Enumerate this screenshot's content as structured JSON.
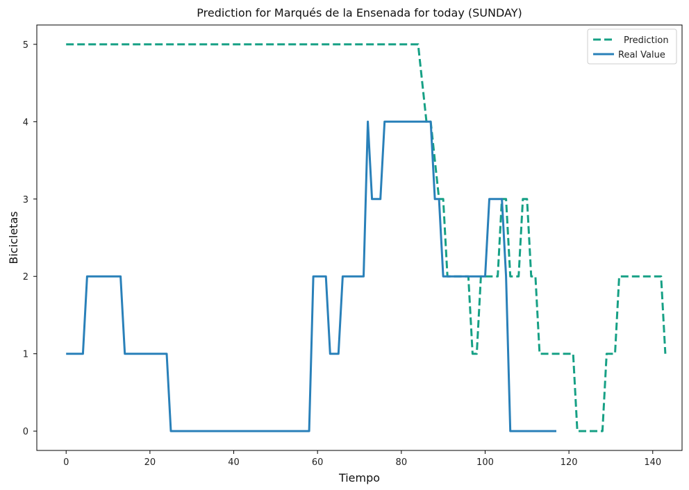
{
  "chart_data": {
    "type": "line",
    "title": "Prediction for Marqués de la Ensenada for today (SUNDAY)",
    "xlabel": "Tiempo",
    "ylabel": "Bicicletas",
    "xlim": [
      -7,
      147
    ],
    "ylim": [
      -0.25,
      5.25
    ],
    "xticks": [
      0,
      20,
      40,
      60,
      80,
      100,
      120,
      140
    ],
    "yticks": [
      0,
      1,
      2,
      3,
      4,
      5
    ],
    "grid": false,
    "legend_position": "top-right",
    "series": [
      {
        "name": "Prediction",
        "style": "dashed",
        "color": "#16a085",
        "x": [
          0,
          84,
          85,
          86,
          87,
          88,
          89,
          90,
          91,
          95,
          96,
          97,
          98,
          99,
          100,
          101,
          102,
          103,
          104,
          105,
          106,
          107,
          108,
          109,
          110,
          111,
          112,
          113,
          120,
          121,
          122,
          127,
          128,
          129,
          130,
          131,
          132,
          138,
          139,
          140,
          141,
          142,
          143
        ],
        "y": [
          5,
          5,
          4.5,
          4,
          4,
          3.5,
          3,
          3,
          2,
          2,
          2,
          1,
          1,
          2,
          2,
          2,
          2,
          2,
          3,
          3,
          2,
          2,
          2,
          3,
          3,
          2,
          2,
          1,
          1,
          1,
          0,
          0,
          0,
          1,
          1,
          1,
          2,
          2,
          2,
          2,
          2,
          2,
          1
        ]
      },
      {
        "name": "Real Value",
        "style": "solid",
        "color": "#2980b9",
        "x": [
          0,
          4,
          5,
          13,
          14,
          24,
          25,
          58,
          59,
          62,
          63,
          65,
          66,
          71,
          72,
          73,
          75,
          76,
          87,
          88,
          89,
          90,
          91,
          99,
          100,
          101,
          104,
          105,
          106,
          107,
          117
        ],
        "y": [
          1,
          1,
          2,
          2,
          1,
          1,
          0,
          0,
          2,
          2,
          1,
          1,
          2,
          2,
          4,
          3,
          3,
          4,
          4,
          3,
          3,
          2,
          2,
          2,
          2,
          3,
          3,
          2,
          0,
          0,
          0
        ]
      }
    ]
  }
}
